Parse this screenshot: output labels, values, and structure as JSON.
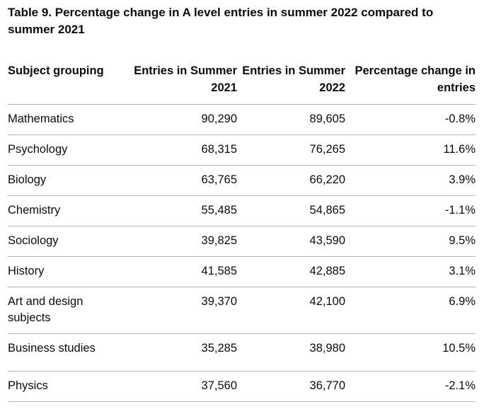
{
  "caption": "Table 9. Percentage change in A level entries in summer 2022 compared to summer 2021",
  "table": {
    "headers": {
      "subject": "Subject grouping",
      "entries_2021": "Entries in Summer 2021",
      "entries_2022": "Entries in Summer 2022",
      "pct_change": "Percentage change in entries"
    },
    "rows": [
      {
        "subject": "Mathematics",
        "entries_2021": "90,290",
        "entries_2022": "89,605",
        "pct_change": "-0.8%"
      },
      {
        "subject": "Psychology",
        "entries_2021": "68,315",
        "entries_2022": "76,265",
        "pct_change": "11.6%"
      },
      {
        "subject": "Biology",
        "entries_2021": "63,765",
        "entries_2022": "66,220",
        "pct_change": "3.9%"
      },
      {
        "subject": "Chemistry",
        "entries_2021": "55,485",
        "entries_2022": "54,865",
        "pct_change": "-1.1%"
      },
      {
        "subject": "Sociology",
        "entries_2021": "39,825",
        "entries_2022": "43,590",
        "pct_change": "9.5%"
      },
      {
        "subject": "History",
        "entries_2021": "41,585",
        "entries_2022": "42,885",
        "pct_change": "3.1%"
      },
      {
        "subject": "Art and design subjects",
        "entries_2021": "39,370",
        "entries_2022": "42,100",
        "pct_change": "6.9%"
      },
      {
        "subject": "Business studies",
        "entries_2021": "35,285",
        "entries_2022": "38,980",
        "pct_change": "10.5%"
      },
      {
        "subject": "Physics",
        "entries_2021": "37,560",
        "entries_2022": "36,770",
        "pct_change": "-2.1%"
      }
    ]
  }
}
